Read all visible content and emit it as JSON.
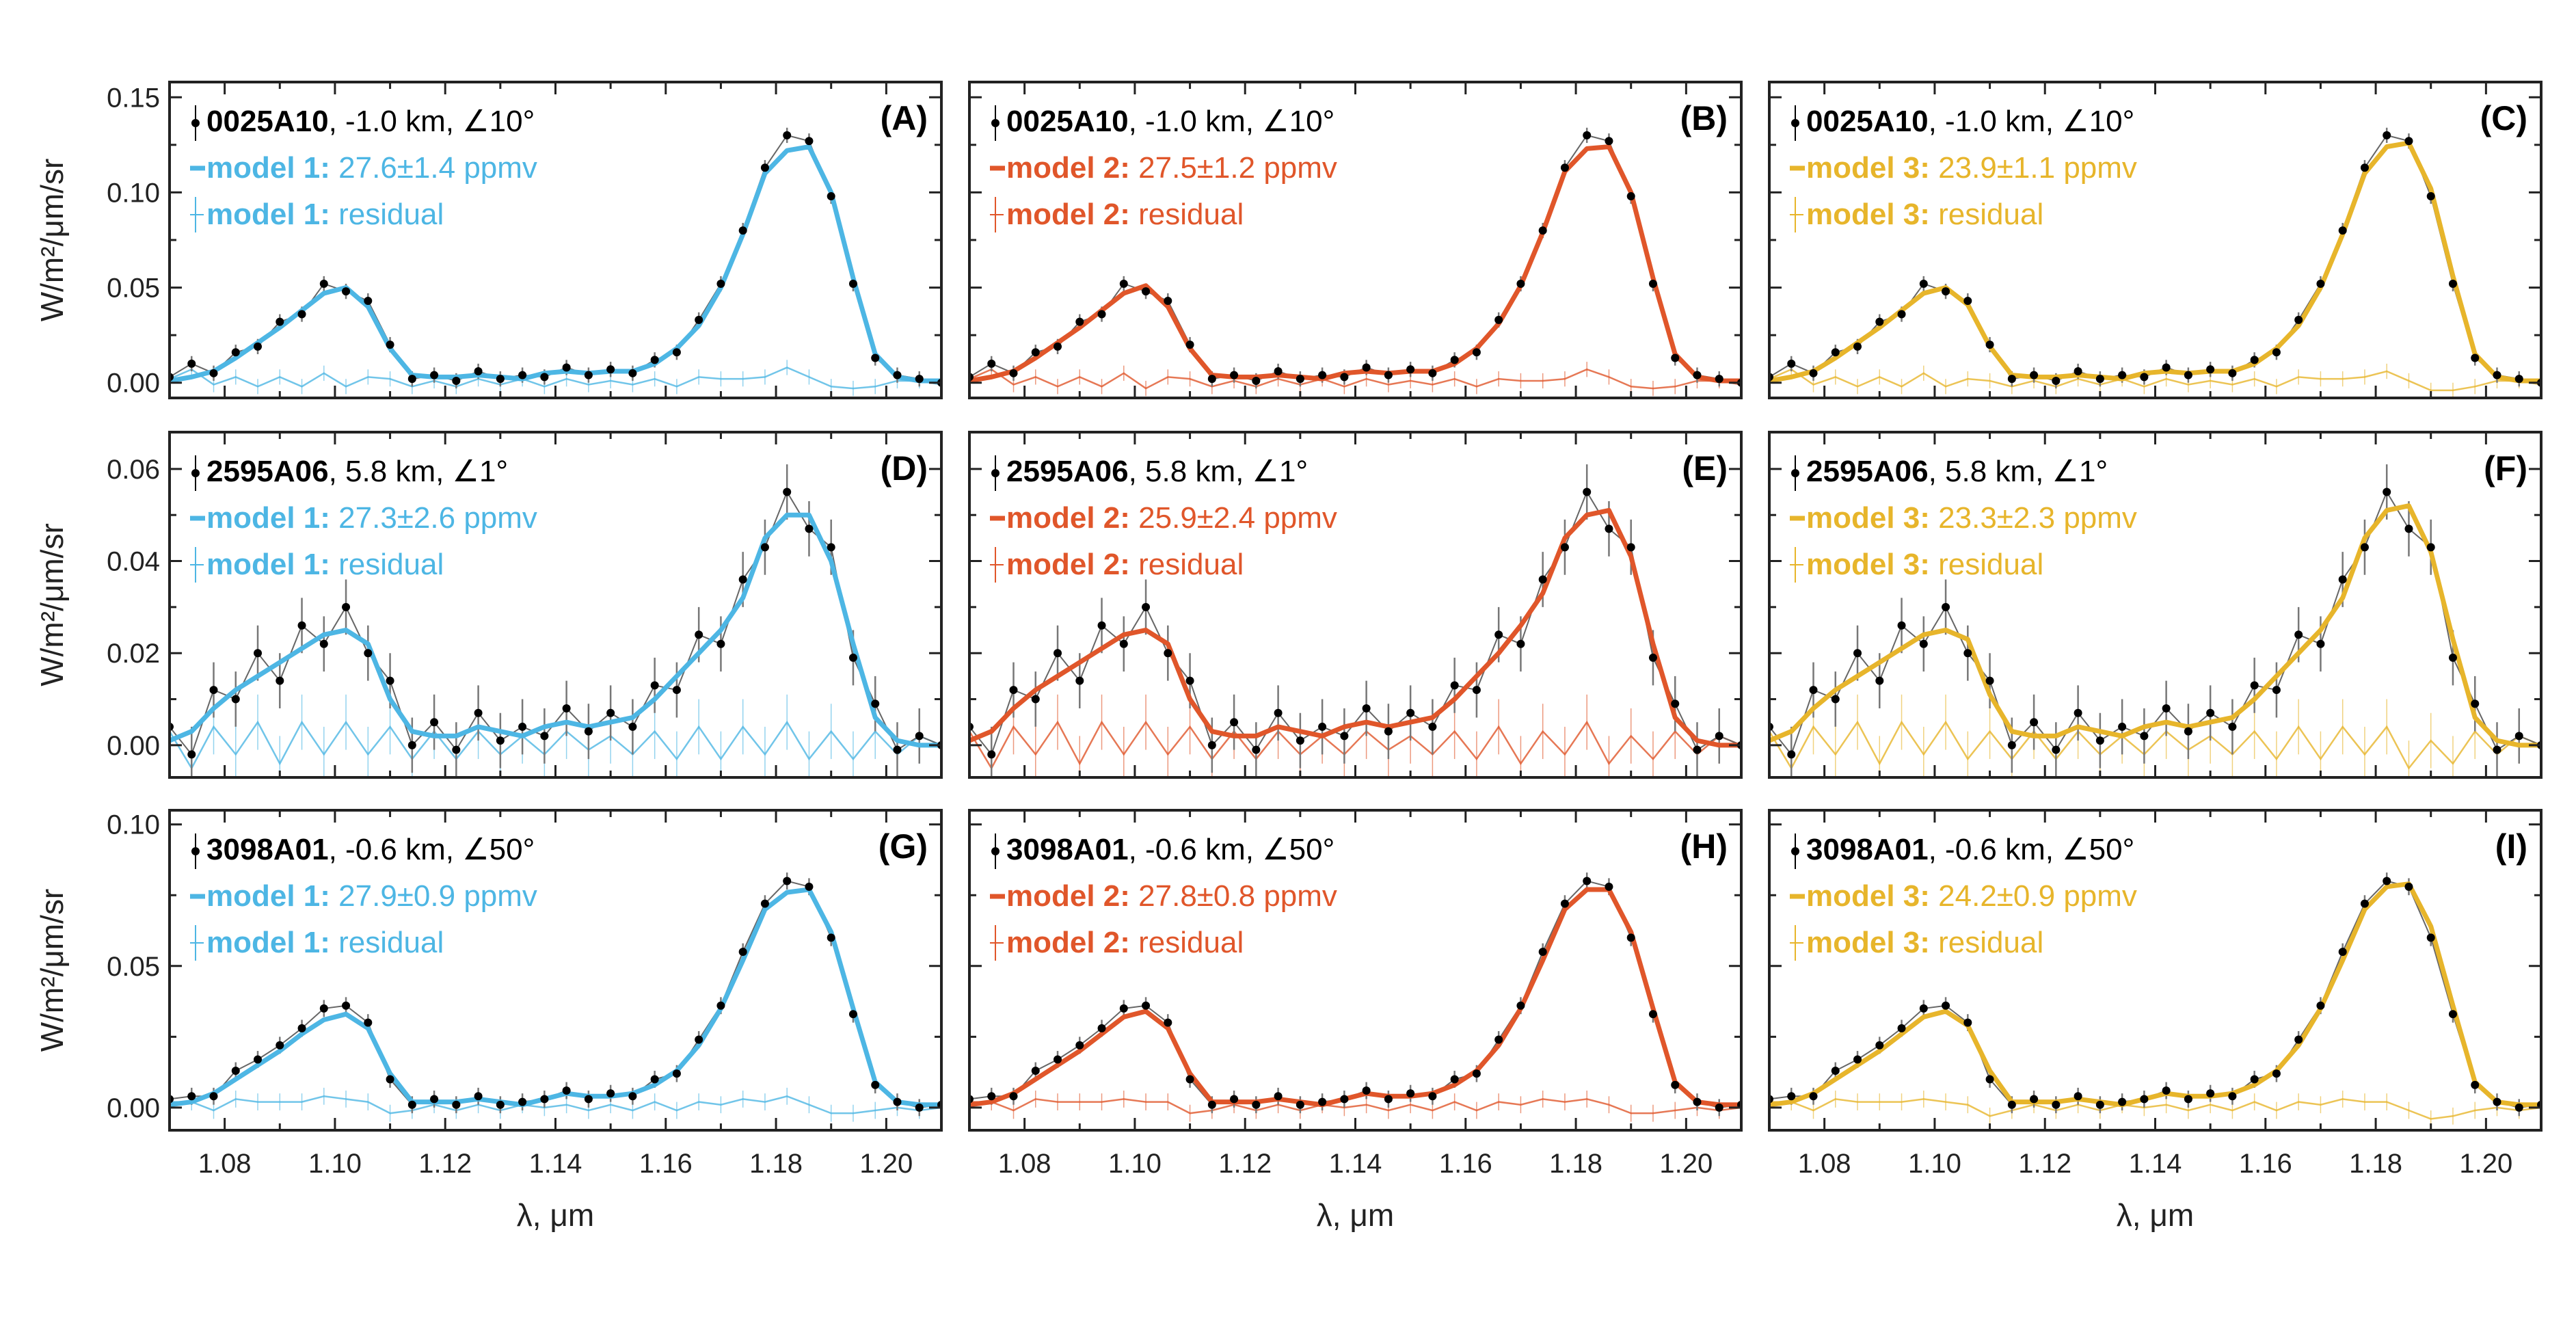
{
  "chart_data": {
    "type": "line",
    "xlabel": "λ, μm",
    "ylabel": "W/m²/μm/sr",
    "xlim": [
      1.07,
      1.21
    ],
    "xticks": [
      "1.08",
      "1.10",
      "1.12",
      "1.14",
      "1.16",
      "1.18",
      "1.20"
    ],
    "grid": false,
    "legend_placement": "top-left",
    "x": [
      1.07,
      1.074,
      1.078,
      1.082,
      1.086,
      1.09,
      1.094,
      1.098,
      1.102,
      1.106,
      1.11,
      1.114,
      1.118,
      1.122,
      1.126,
      1.13,
      1.134,
      1.138,
      1.142,
      1.146,
      1.15,
      1.154,
      1.158,
      1.162,
      1.166,
      1.17,
      1.174,
      1.178,
      1.182,
      1.186,
      1.19,
      1.194,
      1.198,
      1.202,
      1.206,
      1.21
    ],
    "rows": [
      {
        "observation_id": "0025A10",
        "observation_info": ", -1.0 km, ∠10°",
        "ylim": [
          -0.008,
          0.158
        ],
        "yticks": [
          "0.00",
          "0.05",
          "0.10",
          "0.15"
        ],
        "ytick_values": [
          0,
          0.05,
          0.1,
          0.15
        ],
        "error": 0.004,
        "observed": [
          0.003,
          0.01,
          0.005,
          0.016,
          0.019,
          0.032,
          0.036,
          0.052,
          0.048,
          0.043,
          0.02,
          0.002,
          0.004,
          0.001,
          0.006,
          0.002,
          0.004,
          0.003,
          0.008,
          0.004,
          0.007,
          0.005,
          0.012,
          0.016,
          0.033,
          0.052,
          0.08,
          0.113,
          0.13,
          0.127,
          0.098,
          0.052,
          0.013,
          0.004,
          0.002,
          0.0
        ],
        "panels": [
          {
            "label": "(A)",
            "model_name": "model 1:",
            "model_value": " 27.6±1.4 ppmv",
            "residual_label": " residual",
            "color": "#4db6e4",
            "model": [
              0.001,
              0.003,
              0.006,
              0.013,
              0.021,
              0.029,
              0.038,
              0.047,
              0.05,
              0.04,
              0.018,
              0.004,
              0.003,
              0.003,
              0.004,
              0.003,
              0.002,
              0.005,
              0.006,
              0.005,
              0.006,
              0.006,
              0.01,
              0.018,
              0.03,
              0.05,
              0.078,
              0.11,
              0.122,
              0.124,
              0.1,
              0.055,
              0.015,
              0.003,
              0.001,
              0.001
            ]
          },
          {
            "label": "(B)",
            "model_name": "model 2:",
            "model_value": " 27.5±1.2 ppmv",
            "residual_label": " residual",
            "color": "#e0562a",
            "model": [
              0.001,
              0.003,
              0.006,
              0.013,
              0.021,
              0.029,
              0.038,
              0.047,
              0.051,
              0.04,
              0.018,
              0.004,
              0.003,
              0.003,
              0.004,
              0.003,
              0.002,
              0.005,
              0.006,
              0.005,
              0.006,
              0.006,
              0.01,
              0.018,
              0.031,
              0.051,
              0.079,
              0.111,
              0.123,
              0.124,
              0.1,
              0.055,
              0.015,
              0.003,
              0.001,
              0.001
            ]
          },
          {
            "label": "(C)",
            "model_name": "model 3:",
            "model_value": " 23.9±1.1 ppmv",
            "residual_label": " residual",
            "color": "#e7b52b",
            "model": [
              0.001,
              0.003,
              0.006,
              0.013,
              0.021,
              0.029,
              0.038,
              0.047,
              0.05,
              0.041,
              0.019,
              0.004,
              0.003,
              0.003,
              0.004,
              0.003,
              0.002,
              0.005,
              0.006,
              0.005,
              0.006,
              0.006,
              0.01,
              0.018,
              0.03,
              0.05,
              0.078,
              0.11,
              0.124,
              0.126,
              0.102,
              0.056,
              0.015,
              0.003,
              0.001,
              0.001
            ]
          }
        ]
      },
      {
        "observation_id": "2595A06",
        "observation_info": ", 5.8 km, ∠1°",
        "ylim": [
          -0.007,
          0.068
        ],
        "yticks": [
          "0.00",
          "0.02",
          "0.04",
          "0.06"
        ],
        "ytick_values": [
          0,
          0.02,
          0.04,
          0.06
        ],
        "error": 0.006,
        "observed": [
          0.004,
          -0.002,
          0.012,
          0.01,
          0.02,
          0.014,
          0.026,
          0.022,
          0.03,
          0.02,
          0.014,
          0.0,
          0.005,
          -0.001,
          0.007,
          0.001,
          0.004,
          0.002,
          0.008,
          0.003,
          0.007,
          0.004,
          0.013,
          0.012,
          0.024,
          0.022,
          0.036,
          0.043,
          0.055,
          0.047,
          0.043,
          0.019,
          0.009,
          -0.001,
          0.002,
          0.0
        ],
        "panels": [
          {
            "label": "(D)",
            "model_name": "model 1:",
            "model_value": " 27.3±2.6 ppmv",
            "residual_label": " residual",
            "color": "#4db6e4",
            "model": [
              0.001,
              0.003,
              0.008,
              0.012,
              0.015,
              0.018,
              0.021,
              0.024,
              0.025,
              0.022,
              0.01,
              0.003,
              0.002,
              0.002,
              0.004,
              0.003,
              0.002,
              0.004,
              0.005,
              0.004,
              0.005,
              0.006,
              0.01,
              0.015,
              0.02,
              0.025,
              0.032,
              0.045,
              0.05,
              0.05,
              0.04,
              0.022,
              0.006,
              0.001,
              0.0,
              0.0
            ]
          },
          {
            "label": "(E)",
            "model_name": "model 2:",
            "model_value": " 25.9±2.4 ppmv",
            "residual_label": " residual",
            "color": "#e0562a",
            "model": [
              0.001,
              0.003,
              0.008,
              0.012,
              0.015,
              0.018,
              0.021,
              0.024,
              0.025,
              0.022,
              0.01,
              0.003,
              0.002,
              0.002,
              0.004,
              0.003,
              0.002,
              0.004,
              0.005,
              0.004,
              0.005,
              0.006,
              0.01,
              0.015,
              0.02,
              0.026,
              0.033,
              0.045,
              0.05,
              0.051,
              0.041,
              0.022,
              0.006,
              0.001,
              0.0,
              0.0
            ]
          },
          {
            "label": "(F)",
            "model_name": "model 3:",
            "model_value": " 23.3±2.3 ppmv",
            "residual_label": " residual",
            "color": "#e7b52b",
            "model": [
              0.001,
              0.003,
              0.008,
              0.012,
              0.015,
              0.018,
              0.021,
              0.024,
              0.025,
              0.023,
              0.011,
              0.003,
              0.002,
              0.002,
              0.004,
              0.003,
              0.002,
              0.004,
              0.005,
              0.004,
              0.005,
              0.006,
              0.01,
              0.015,
              0.02,
              0.025,
              0.032,
              0.045,
              0.051,
              0.052,
              0.042,
              0.023,
              0.006,
              0.001,
              0.0,
              0.0
            ]
          }
        ]
      },
      {
        "observation_id": "3098A01",
        "observation_info": ", -0.6 km, ∠50°",
        "ylim": [
          -0.008,
          0.105
        ],
        "yticks": [
          "0.00",
          "0.05",
          "0.10"
        ],
        "ytick_values": [
          0,
          0.05,
          0.1
        ],
        "error": 0.003,
        "observed": [
          0.003,
          0.004,
          0.004,
          0.013,
          0.017,
          0.022,
          0.028,
          0.035,
          0.036,
          0.03,
          0.01,
          0.001,
          0.003,
          0.001,
          0.004,
          0.001,
          0.002,
          0.003,
          0.006,
          0.003,
          0.005,
          0.004,
          0.01,
          0.012,
          0.024,
          0.036,
          0.055,
          0.072,
          0.08,
          0.078,
          0.06,
          0.033,
          0.008,
          0.002,
          0.0,
          0.001
        ],
        "panels": [
          {
            "label": "(G)",
            "model_name": "model 1:",
            "model_value": " 27.9±0.9 ppmv",
            "residual_label": " residual",
            "color": "#4db6e4",
            "model": [
              0.001,
              0.002,
              0.005,
              0.01,
              0.015,
              0.02,
              0.026,
              0.031,
              0.033,
              0.028,
              0.012,
              0.002,
              0.002,
              0.002,
              0.003,
              0.002,
              0.001,
              0.003,
              0.005,
              0.004,
              0.004,
              0.005,
              0.008,
              0.013,
              0.022,
              0.035,
              0.052,
              0.07,
              0.076,
              0.077,
              0.062,
              0.035,
              0.009,
              0.002,
              0.001,
              0.001
            ]
          },
          {
            "label": "(H)",
            "model_name": "model 2:",
            "model_value": " 27.8±0.8 ppmv",
            "residual_label": " residual",
            "color": "#e0562a",
            "model": [
              0.001,
              0.002,
              0.005,
              0.01,
              0.015,
              0.02,
              0.026,
              0.032,
              0.034,
              0.028,
              0.012,
              0.002,
              0.002,
              0.002,
              0.003,
              0.002,
              0.001,
              0.003,
              0.005,
              0.004,
              0.004,
              0.005,
              0.008,
              0.013,
              0.022,
              0.035,
              0.052,
              0.07,
              0.077,
              0.077,
              0.062,
              0.035,
              0.009,
              0.002,
              0.001,
              0.001
            ]
          },
          {
            "label": "(I)",
            "model_name": "model 3:",
            "model_value": " 24.2±0.9 ppmv",
            "residual_label": " residual",
            "color": "#e7b52b",
            "model": [
              0.001,
              0.002,
              0.005,
              0.01,
              0.015,
              0.02,
              0.026,
              0.032,
              0.034,
              0.029,
              0.013,
              0.002,
              0.002,
              0.002,
              0.003,
              0.002,
              0.001,
              0.003,
              0.005,
              0.004,
              0.004,
              0.005,
              0.008,
              0.013,
              0.022,
              0.035,
              0.052,
              0.07,
              0.078,
              0.079,
              0.064,
              0.036,
              0.009,
              0.002,
              0.001,
              0.001
            ]
          }
        ]
      }
    ]
  }
}
